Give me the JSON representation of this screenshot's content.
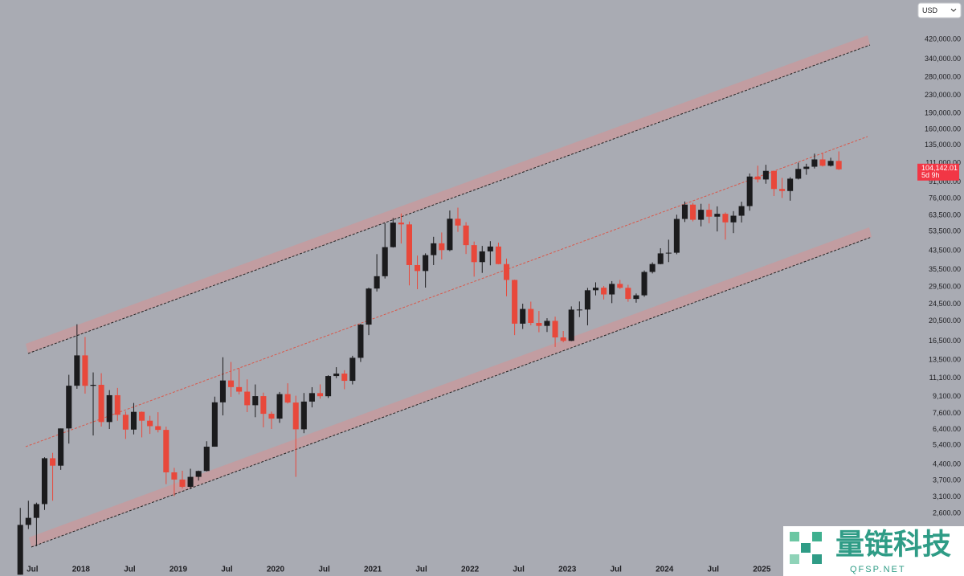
{
  "chart_data": {
    "type": "candlestick",
    "currency": "USD",
    "x": [
      "2017-05",
      "2017-06",
      "2017-07",
      "2017-08",
      "2017-09",
      "2017-10",
      "2017-11",
      "2017-12",
      "2018-01",
      "2018-02",
      "2018-03",
      "2018-04",
      "2018-05",
      "2018-06",
      "2018-07",
      "2018-08",
      "2018-09",
      "2018-10",
      "2018-11",
      "2018-12",
      "2019-01",
      "2019-02",
      "2019-03",
      "2019-04",
      "2019-05",
      "2019-06",
      "2019-07",
      "2019-08",
      "2019-09",
      "2019-10",
      "2019-11",
      "2019-12",
      "2020-01",
      "2020-02",
      "2020-03",
      "2020-04",
      "2020-05",
      "2020-06",
      "2020-07",
      "2020-08",
      "2020-09",
      "2020-10",
      "2020-11",
      "2020-12",
      "2021-01",
      "2021-02",
      "2021-03",
      "2021-04",
      "2021-05",
      "2021-06",
      "2021-07",
      "2021-08",
      "2021-09",
      "2021-10",
      "2021-11",
      "2021-12",
      "2022-01",
      "2022-02",
      "2022-03",
      "2022-04",
      "2022-05",
      "2022-06",
      "2022-07",
      "2022-08",
      "2022-09",
      "2022-10",
      "2022-11",
      "2022-12",
      "2023-01",
      "2023-02",
      "2023-03",
      "2023-04",
      "2023-05",
      "2023-06",
      "2023-07",
      "2023-08",
      "2023-09",
      "2023-10",
      "2023-11",
      "2023-12",
      "2024-01",
      "2024-02",
      "2024-03",
      "2024-04",
      "2024-05",
      "2024-06",
      "2024-07",
      "2024-08",
      "2024-09",
      "2024-10",
      "2024-11",
      "2024-12",
      "2025-01",
      "2025-02",
      "2025-03",
      "2025-04",
      "2025-05",
      "2025-06",
      "2025-07",
      "2025-08",
      "2025-09",
      "2025-10"
    ],
    "open": [
      1348,
      2300,
      2480,
      2875,
      4700,
      4340,
      6470,
      10230,
      14160,
      10220,
      10330,
      6930,
      9240,
      7490,
      6390,
      7730,
      7030,
      6630,
      6370,
      4040,
      3740,
      3460,
      3850,
      4100,
      5320,
      8560,
      10820,
      10080,
      9600,
      8300,
      9150,
      7570,
      7190,
      9350,
      8540,
      6410,
      8630,
      9450,
      9140,
      11350,
      11650,
      10780,
      13800,
      19700,
      29000,
      33100,
      45200,
      58800,
      57700,
      37300,
      35000,
      41500,
      47100,
      43800,
      61300,
      57000,
      46200,
      38500,
      43200,
      45500,
      37700,
      31800,
      19900,
      23300,
      20050,
      19430,
      20500,
      17170,
      16550,
      23130,
      23150,
      28470,
      29270,
      27220,
      30480,
      29230,
      25940,
      26970,
      34650,
      37720,
      42280,
      42580,
      61180,
      71330,
      60640,
      67500,
      62680,
      64630,
      58980,
      63330,
      70200,
      96400,
      93400,
      102400,
      84350,
      82550,
      94200,
      104600,
      107100,
      115800,
      108200,
      114000
    ],
    "high": [
      2760,
      2980,
      2920,
      4750,
      4980,
      6470,
      11500,
      19780,
      17250,
      11800,
      11700,
      9760,
      9990,
      7760,
      8500,
      7760,
      7410,
      7700,
      6600,
      4240,
      4110,
      4200,
      4120,
      5640,
      9100,
      13880,
      13200,
      12330,
      10950,
      10370,
      9500,
      7750,
      9570,
      10500,
      9190,
      9460,
      10070,
      10380,
      11450,
      12480,
      12080,
      14100,
      19860,
      29300,
      41950,
      58350,
      61780,
      64850,
      59500,
      41300,
      42300,
      50500,
      52900,
      67000,
      69000,
      59100,
      48000,
      45800,
      48200,
      47450,
      40000,
      31900,
      24650,
      25200,
      22800,
      21100,
      21450,
      18400,
      23950,
      25250,
      29200,
      31000,
      29820,
      31400,
      31800,
      30200,
      27500,
      35200,
      38400,
      44700,
      48970,
      64000,
      73750,
      72700,
      71950,
      71950,
      70000,
      65600,
      66500,
      73600,
      99600,
      108300,
      109350,
      102500,
      95000,
      95700,
      111900,
      110600,
      123200,
      124400,
      117900,
      126200
    ],
    "low": [
      1348,
      2200,
      1830,
      2700,
      2980,
      4150,
      5500,
      9900,
      9400,
      6000,
      6600,
      6430,
      7030,
      5780,
      6070,
      5880,
      6100,
      6200,
      3560,
      3130,
      3400,
      3380,
      3700,
      4080,
      5320,
      7440,
      9080,
      9320,
      7710,
      7300,
      6550,
      6430,
      6870,
      8450,
      3850,
      6150,
      8110,
      8900,
      8970,
      11100,
      9850,
      10370,
      13200,
      17600,
      28100,
      32300,
      45000,
      47000,
      30000,
      28800,
      29300,
      37300,
      39600,
      43300,
      53250,
      42000,
      32950,
      34300,
      37200,
      37600,
      26700,
      17600,
      18800,
      19550,
      18150,
      18200,
      15500,
      16300,
      16500,
      21350,
      19550,
      26950,
      25800,
      24800,
      28860,
      25170,
      24920,
      26550,
      34100,
      37600,
      38500,
      41900,
      59200,
      59600,
      56500,
      58400,
      53500,
      49000,
      52550,
      58900,
      66800,
      90500,
      89200,
      78200,
      76600,
      74400,
      93400,
      98200,
      105100,
      107300,
      107300,
      103500
    ],
    "close": [
      2300,
      2480,
      2875,
      4700,
      4340,
      6470,
      10230,
      14160,
      10220,
      10330,
      6930,
      9240,
      7490,
      6390,
      7730,
      7030,
      6630,
      6370,
      4040,
      3740,
      3460,
      3850,
      4100,
      5320,
      8560,
      10820,
      10080,
      9600,
      8300,
      9150,
      7570,
      7190,
      9350,
      8540,
      6410,
      8630,
      9450,
      9140,
      11350,
      11650,
      10780,
      13800,
      19700,
      29000,
      33100,
      45200,
      58800,
      57700,
      37300,
      35000,
      41500,
      47100,
      43800,
      61300,
      57000,
      46200,
      38500,
      43200,
      45500,
      37700,
      31800,
      19900,
      23300,
      20050,
      19430,
      20500,
      17170,
      16550,
      23130,
      23150,
      28470,
      29270,
      27220,
      30480,
      29230,
      25940,
      26970,
      34650,
      37720,
      42280,
      42580,
      61180,
      71330,
      60640,
      67500,
      62680,
      64630,
      58980,
      63330,
      70200,
      96400,
      93400,
      102400,
      84350,
      82550,
      94200,
      104600,
      107100,
      115800,
      108200,
      114000,
      104142.01
    ],
    "up_color": "#1b1b1d",
    "down_color": "#e8483b",
    "price_label": {
      "value": 104142.01,
      "label": "104,142.01"
    },
    "countdown": "5d 9h",
    "price_label_color": "#f23645",
    "log_scale": true,
    "grid": false,
    "xlim": [
      "2017-03",
      "2026-08"
    ],
    "ylim": [
      1500,
      640000
    ],
    "xticks": [
      {
        "value": "2017-07",
        "label": "Jul"
      },
      {
        "value": "2018-01",
        "label": "2018"
      },
      {
        "value": "2018-07",
        "label": "Jul"
      },
      {
        "value": "2019-01",
        "label": "2019"
      },
      {
        "value": "2019-07",
        "label": "Jul"
      },
      {
        "value": "2020-01",
        "label": "2020"
      },
      {
        "value": "2020-07",
        "label": "Jul"
      },
      {
        "value": "2021-01",
        "label": "2021"
      },
      {
        "value": "2021-07",
        "label": "Jul"
      },
      {
        "value": "2022-01",
        "label": "2022"
      },
      {
        "value": "2022-07",
        "label": "Jul"
      },
      {
        "value": "2023-01",
        "label": "2023"
      },
      {
        "value": "2023-07",
        "label": "Jul"
      },
      {
        "value": "2024-01",
        "label": "2024"
      },
      {
        "value": "2024-07",
        "label": "Jul"
      },
      {
        "value": "2025-01",
        "label": "2025"
      }
    ],
    "yticks": [
      {
        "value": 420000,
        "label": "420,000.00"
      },
      {
        "value": 340000,
        "label": "340,000.00"
      },
      {
        "value": 280000,
        "label": "280,000.00"
      },
      {
        "value": 230000,
        "label": "230,000.00"
      },
      {
        "value": 190000,
        "label": "190,000.00"
      },
      {
        "value": 160000,
        "label": "160,000.00"
      },
      {
        "value": 135000,
        "label": "135,000.00"
      },
      {
        "value": 111000,
        "label": "111,000.00"
      },
      {
        "value": 91000,
        "label": "91,000.00"
      },
      {
        "value": 76000,
        "label": "76,000.00"
      },
      {
        "value": 63500,
        "label": "63,500.00"
      },
      {
        "value": 53500,
        "label": "53,500.00"
      },
      {
        "value": 43500,
        "label": "43,500.00"
      },
      {
        "value": 35500,
        "label": "35,500.00"
      },
      {
        "value": 29500,
        "label": "29,500.00"
      },
      {
        "value": 24500,
        "label": "24,500.00"
      },
      {
        "value": 20500,
        "label": "20,500.00"
      },
      {
        "value": 16500,
        "label": "16,500.00"
      },
      {
        "value": 13500,
        "label": "13,500.00"
      },
      {
        "value": 11100,
        "label": "11,100.00"
      },
      {
        "value": 9100,
        "label": "9,100.00"
      },
      {
        "value": 7600,
        "label": "7,600.00"
      },
      {
        "value": 6400,
        "label": "6,400.00"
      },
      {
        "value": 5400,
        "label": "5,400.00"
      },
      {
        "value": 4400,
        "label": "4,400.00"
      },
      {
        "value": 3700,
        "label": "3,700.00"
      },
      {
        "value": 3100,
        "label": "3,100.00"
      },
      {
        "value": 2600,
        "label": "2,600.00"
      }
    ]
  },
  "watermark": {
    "title": "量链科技",
    "subtitle": "QFSP.NET"
  }
}
